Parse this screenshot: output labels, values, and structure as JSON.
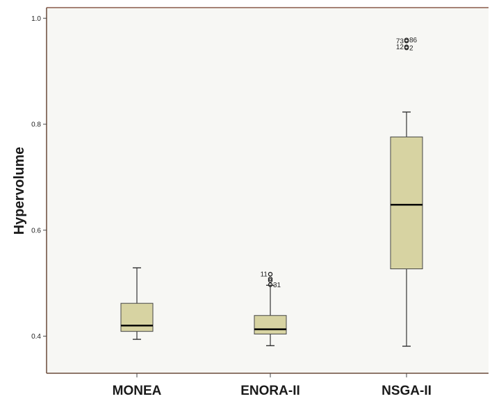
{
  "chart_data": {
    "type": "boxplot",
    "ylabel": "Hypervolume",
    "xlabel": "",
    "ylim": [
      0.33,
      1.02
    ],
    "yticks": [
      0.4,
      0.6,
      0.8,
      1.0
    ],
    "ytick_labels": [
      "0.4",
      "0.6",
      "0.8",
      "1.0"
    ],
    "grid": false,
    "colors": {
      "box_fill": "#d7d3a2",
      "plot_bg": "#f7f7f4",
      "median": "#000000"
    },
    "categories": [
      "MONEA",
      "ENORA-II",
      "NSGA-II"
    ],
    "boxes": [
      {
        "category": "MONEA",
        "min": 0.394,
        "q1": 0.409,
        "median": 0.42,
        "q3": 0.462,
        "max": 0.529,
        "outliers": []
      },
      {
        "category": "ENORA-II",
        "min": 0.382,
        "q1": 0.404,
        "median": 0.413,
        "q3": 0.439,
        "max": 0.496,
        "outliers": [
          {
            "value": 0.517,
            "label": "11"
          },
          {
            "value": 0.508,
            "label": ""
          },
          {
            "value": 0.505,
            "label": ""
          },
          {
            "value": 0.497,
            "label": "31"
          }
        ]
      },
      {
        "category": "NSGA-II",
        "min": 0.381,
        "q1": 0.527,
        "median": 0.648,
        "q3": 0.776,
        "max": 0.823,
        "outliers": [
          {
            "value": 0.957,
            "label": "73"
          },
          {
            "value": 0.959,
            "label": "86"
          },
          {
            "value": 0.946,
            "label": "12"
          },
          {
            "value": 0.944,
            "label": "2"
          }
        ]
      }
    ]
  }
}
